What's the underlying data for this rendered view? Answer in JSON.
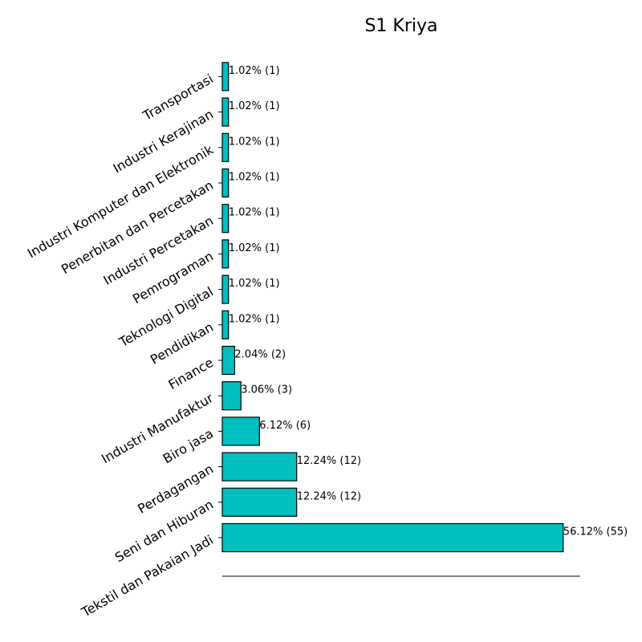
{
  "chart_data": {
    "type": "bar",
    "orientation": "horizontal",
    "title": "S1 Kriya",
    "xlabel": "",
    "ylabel": "",
    "grid": false,
    "bar_color": "#00bfbf",
    "edge_color": "#000000",
    "categories": [
      "Tekstil dan Pakaian Jadi",
      "Seni dan Hiburan",
      "Perdagangan",
      "Biro jasa",
      "Industri Manufaktur",
      "Finance",
      "Pendidikan",
      "Teknologi Digital",
      "Pemrograman",
      "Industri Percetakan",
      "Penerbitan dan Percetakan",
      "Industri Komputer dan Elektronik",
      "Industri Kerajinan",
      "Transportasi"
    ],
    "values": [
      55,
      12,
      12,
      6,
      3,
      2,
      1,
      1,
      1,
      1,
      1,
      1,
      1,
      1
    ],
    "labels": [
      "56.12% (55)",
      "12.24% (12)",
      "12.24% (12)",
      "6.12% (6)",
      "3.06% (3)",
      "2.04% (2)",
      "1.02% (1)",
      "1.02% (1)",
      "1.02% (1)",
      "1.02% (1)",
      "1.02% (1)",
      "1.02% (1)",
      "1.02% (1)",
      "1.02% (1)"
    ],
    "xlim": [
      0,
      57.75
    ]
  }
}
